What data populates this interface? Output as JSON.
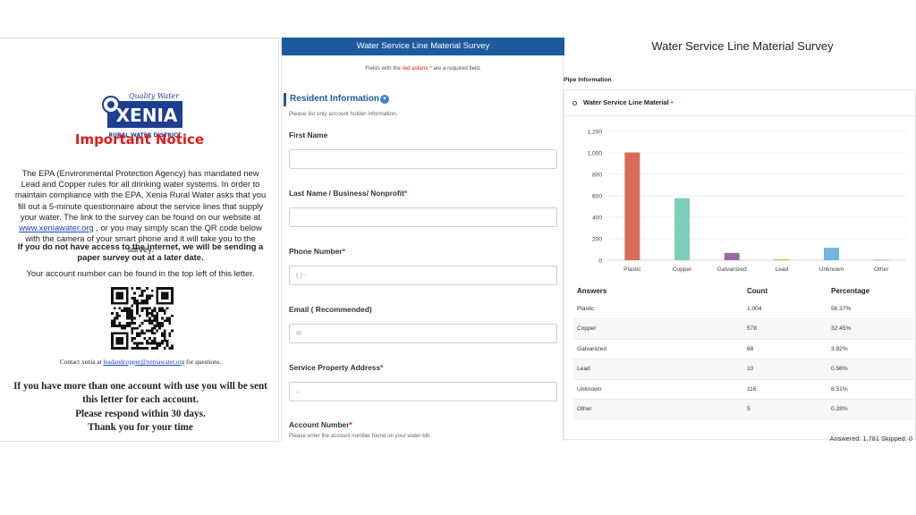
{
  "letter": {
    "logo_script": "Quality Water",
    "logo_name": "XENIA",
    "logo_sub": "RURAL WATER DISTRICT",
    "notice_title": "Important Notice",
    "body_pre": "The EPA (Environmental Protection Agency) has mandated new Lead and Copper rules for all drinking water systems. In order to maintain compliance with the EPA, Xenia Rural Water asks that you fill out a 5-minute questionnaire about the service lines that supply your water. The link to the survey can be found on our website at ",
    "website_link": "www.xeniawater.org",
    "body_post": " , or you may simply scan the QR code below with the camera of your smart phone and it will take you to the survey.",
    "bold_notice": "If you do not have access to the internet, we will be sending a paper survey out at a later date.",
    "account_note": "Your account number can be found in the top left of this letter.",
    "contact_pre": "Contact xenia at ",
    "contact_email": "leadandcopper@xeniawater.org",
    "contact_post": " for questions.",
    "closing_1": "If you have more than one account with use you will be sent this letter for each account.",
    "closing_2": "Please respond within 30 days.",
    "closing_3": "Thank you for your time"
  },
  "form": {
    "header": "Water Service Line Material Survey",
    "note_pre": "Fields with the ",
    "note_red": "red asterix *",
    "note_post": " are a required field.",
    "section_title": "Resident Information",
    "section_hint": "Please list only account holder information.",
    "fields": [
      {
        "label": "First Name",
        "required": "",
        "placeholder": ""
      },
      {
        "label": "Last Name / Business/ Nonprofit",
        "required": "*",
        "placeholder": ""
      },
      {
        "label": "Phone Number",
        "required": "*",
        "placeholder": "(  )  -"
      },
      {
        "label": "Email ( Recommended)",
        "required": "",
        "placeholder": "✉"
      },
      {
        "label": "Service Property Address",
        "required": "*",
        "placeholder": "⌂"
      },
      {
        "label": "Account Number",
        "required": "*",
        "placeholder": ""
      }
    ],
    "account_hint": "Please enter the account number found on your water bill."
  },
  "results": {
    "title": "Water Service Line Material Survey",
    "section": "Pipe Information",
    "question": "Water Service Line Material",
    "required_mark": "•",
    "table_headers": {
      "answers": "Answers",
      "count": "Count",
      "percentage": "Percentage"
    },
    "rows": [
      {
        "answer": "Plastic",
        "count": "1,004",
        "percentage": "56.37%"
      },
      {
        "answer": "Copper",
        "count": "578",
        "percentage": "32.45%"
      },
      {
        "answer": "Galvanized",
        "count": "68",
        "percentage": "3.82%"
      },
      {
        "answer": "Lead",
        "count": "10",
        "percentage": "0.56%"
      },
      {
        "answer": "Unknown",
        "count": "116",
        "percentage": "6.51%"
      },
      {
        "answer": "Other",
        "count": "5",
        "percentage": "0.28%"
      }
    ],
    "summary": "Answered: 1,781  Skipped: 0"
  },
  "chart_data": {
    "type": "bar",
    "categories": [
      "Plastic",
      "Copper",
      "Galvanized",
      "Lead",
      "Unknown",
      "Other"
    ],
    "values": [
      1004,
      578,
      68,
      10,
      116,
      5
    ],
    "colors": [
      "#d96a57",
      "#7ecfba",
      "#9a6ba2",
      "#e8b84a",
      "#72b4dd",
      "#e8a272"
    ],
    "yticks": [
      0,
      200,
      400,
      600,
      800,
      1000,
      1200
    ],
    "ytick_labels": [
      "0",
      "200",
      "400",
      "600",
      "800",
      "1,000",
      "1,200"
    ],
    "ylim": [
      0,
      1200
    ],
    "grid": true
  }
}
